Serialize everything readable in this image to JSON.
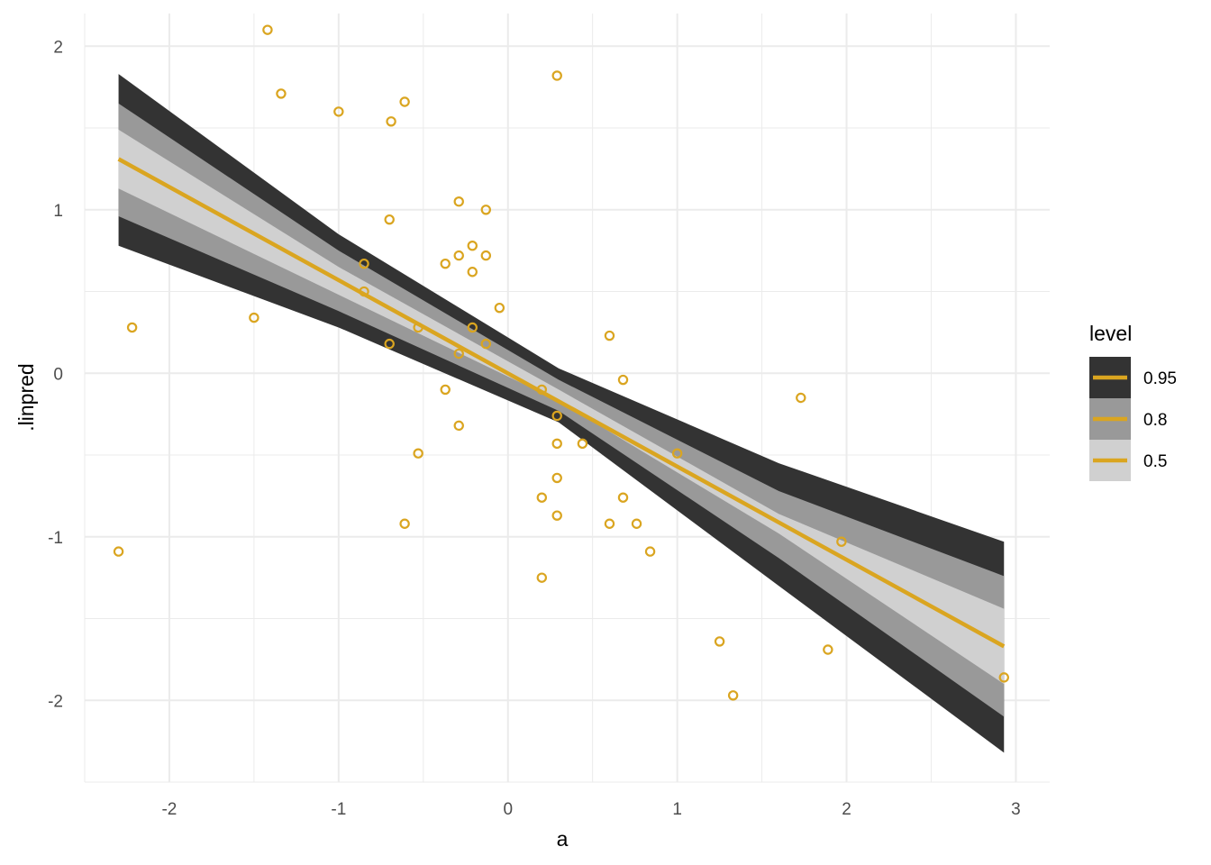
{
  "chart_data": {
    "type": "line",
    "xlabel": "a",
    "ylabel": ".linpred",
    "xlim": [
      -2.5,
      3.2
    ],
    "ylim": [
      -2.5,
      2.2
    ],
    "x_ticks": [
      -2,
      -1,
      0,
      1,
      2,
      3
    ],
    "x_tick_labels": [
      "-2",
      "-1",
      "0",
      "1",
      "2",
      "3"
    ],
    "y_ticks": [
      -2,
      -1,
      0,
      1,
      2
    ],
    "y_tick_labels": [
      "-2",
      "-1",
      "0",
      "1",
      "2"
    ],
    "grid": true,
    "legend": {
      "title": "level",
      "placement": "right",
      "entries": [
        "0.95",
        "0.8",
        "0.5"
      ]
    },
    "colors": {
      "line": "#DAA520",
      "points": "#DAA520",
      "band_0.95": "#333333",
      "band_0.8": "#999999",
      "band_0.5": "#D0D0D0",
      "grid": "#EBEBEB"
    },
    "fit_line": {
      "x": [
        -2.3,
        2.93
      ],
      "y": [
        1.31,
        -1.67
      ]
    },
    "bands": [
      {
        "level": "0.95",
        "x": [
          -2.3,
          -1.0,
          0.3,
          1.6,
          2.93
        ],
        "lower": [
          0.78,
          0.28,
          -0.3,
          -1.3,
          -2.32
        ],
        "upper": [
          1.83,
          0.85,
          0.03,
          -0.55,
          -1.03
        ]
      },
      {
        "level": "0.8",
        "x": [
          -2.3,
          -1.0,
          0.3,
          1.6,
          2.93
        ],
        "lower": [
          0.96,
          0.38,
          -0.23,
          -1.13,
          -2.1
        ],
        "upper": [
          1.65,
          0.75,
          -0.04,
          -0.72,
          -1.24
        ]
      },
      {
        "level": "0.5",
        "x": [
          -2.3,
          -1.0,
          0.3,
          1.6,
          2.93
        ],
        "lower": [
          1.13,
          0.48,
          -0.17,
          -0.98,
          -1.9
        ],
        "upper": [
          1.49,
          0.65,
          -0.1,
          -0.86,
          -1.44
        ]
      }
    ],
    "points": {
      "x": [
        -1.42,
        -1.34,
        -1.0,
        -0.61,
        -0.69,
        0.29,
        -2.3,
        -2.22,
        -1.5,
        -0.7,
        -0.85,
        -0.85,
        -0.7,
        -0.53,
        -0.29,
        -0.13,
        -0.37,
        -0.29,
        -0.21,
        -0.21,
        -0.13,
        -0.05,
        -0.21,
        -0.13,
        -0.29,
        -0.37,
        -0.29,
        -0.53,
        -0.61,
        0.2,
        0.29,
        0.29,
        0.29,
        0.2,
        0.29,
        0.44,
        0.6,
        0.68,
        0.68,
        0.6,
        0.76,
        0.84,
        1.0,
        0.2,
        1.25,
        1.33,
        1.73,
        1.89,
        1.97,
        2.93
      ],
      "y": [
        2.1,
        1.71,
        1.6,
        1.66,
        1.54,
        1.82,
        -1.09,
        0.28,
        0.34,
        0.94,
        0.67,
        0.5,
        0.18,
        0.28,
        1.05,
        1.0,
        0.67,
        0.72,
        0.78,
        0.62,
        0.72,
        0.4,
        0.28,
        0.18,
        0.12,
        -0.1,
        -0.32,
        -0.49,
        -0.92,
        -0.1,
        -0.26,
        -0.43,
        -0.64,
        -0.76,
        -0.87,
        -0.43,
        0.23,
        -0.04,
        -0.76,
        -0.92,
        -0.92,
        -1.09,
        -0.49,
        -1.25,
        -1.64,
        -1.97,
        -0.15,
        -1.69,
        -1.03,
        -1.86
      ]
    }
  }
}
